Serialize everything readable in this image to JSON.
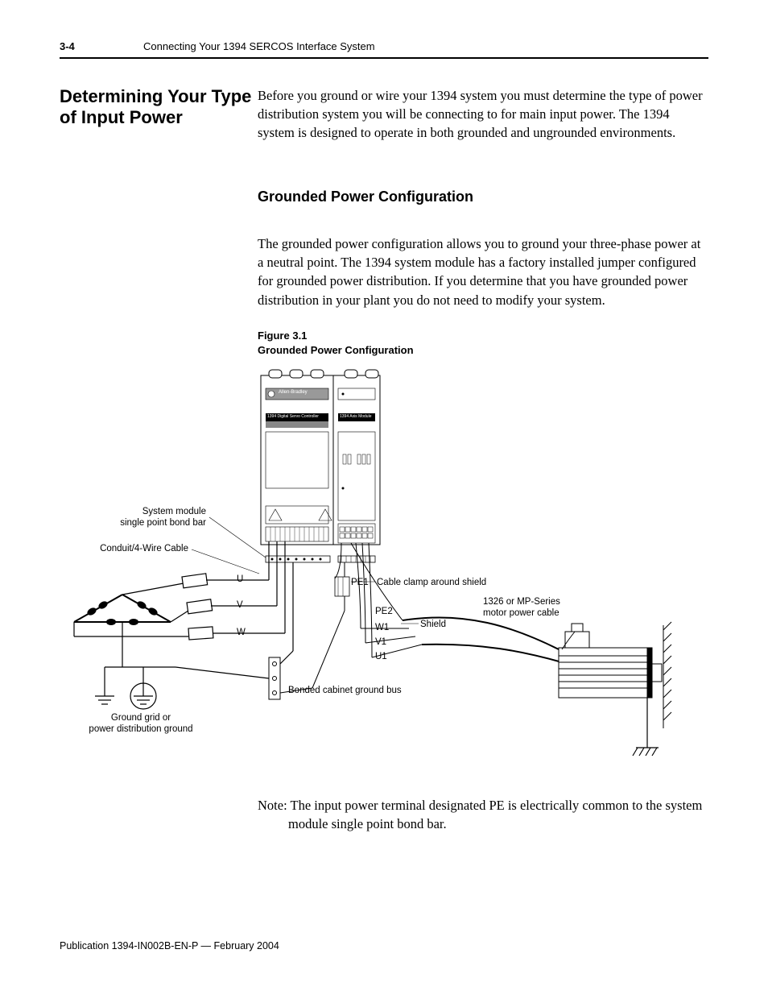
{
  "header": {
    "page_number": "3-4",
    "chapter_title": "Connecting Your 1394 SERCOS Interface System"
  },
  "section_heading": "Determining Your Type of Input Power",
  "intro_para": "Before you ground or wire your 1394 system you must determine the type of power distribution system you will be connecting to for main input power. The 1394 system is designed to operate in both grounded and ungrounded environments.",
  "sub_heading": "Grounded Power Configuration",
  "sub_para": "The grounded power configuration allows you to ground your three-phase power at a neutral point. The 1394 system module has a factory installed jumper configured for grounded power distribution. If you determine that you have grounded power distribution in your plant you do not need to modify your system.",
  "figure": {
    "caption_line1": "Figure 3.1",
    "caption_line2": "Grounded Power Configuration",
    "labels": {
      "system_module": "System module\nsingle point bond bar",
      "conduit": "Conduit/4-Wire Cable",
      "U": "U",
      "V": "V",
      "W": "W",
      "PE1": "PE1",
      "PE2": "PE2",
      "W1": "W1",
      "V1": "V1",
      "U1": "U1",
      "cable_clamp": "Cable clamp around shield",
      "shield": "Shield",
      "motor_cable": "1326 or MP-Series\nmotor power cable",
      "bonded_bus": "Bonded cabinet ground bus",
      "ground_grid": "Ground grid or\npower distribution ground",
      "device_brand": "Allen-Bradley",
      "device_line1": "1394   Digital  Servo  Controller",
      "device_line2": "1394 Axis Module"
    }
  },
  "note_para": "Note: The input power terminal designated PE is electrically common to the system module single point bond bar.",
  "footer": "Publication 1394-IN002B-EN-P — February 2004"
}
